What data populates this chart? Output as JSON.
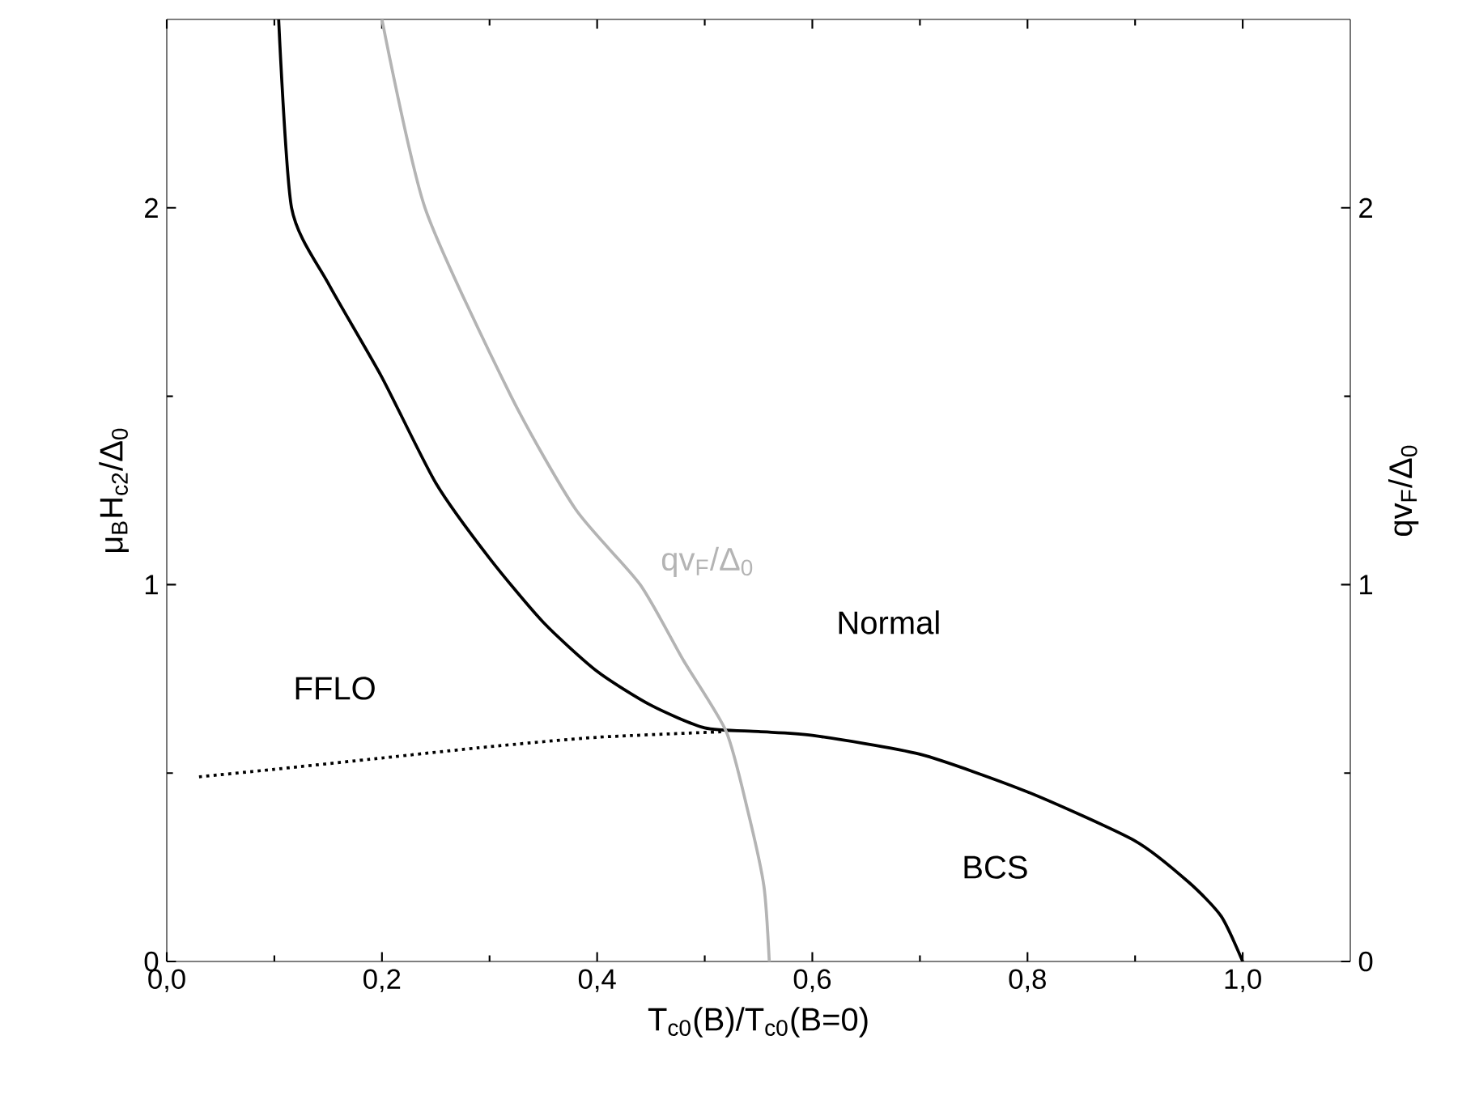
{
  "chart_data": {
    "type": "line",
    "xlabel": "T$_{c0}$(B)/T$_{c0}$(B=0)",
    "ylabel": "μ$_{B}$H$_{c2}$/Δ$_{0}$",
    "y2label": "qv$_{F}$/Δ$_{0}$",
    "xlim": [
      0,
      1.1
    ],
    "ylim": [
      0,
      2.5
    ],
    "y2lim": [
      0,
      2.5
    ],
    "xticks": [
      {
        "value": 0,
        "label": "0,0"
      },
      {
        "value": 0.2,
        "label": "0,2"
      },
      {
        "value": 0.4,
        "label": "0,4"
      },
      {
        "value": 0.6,
        "label": "0,6"
      },
      {
        "value": 0.8,
        "label": "0,8"
      },
      {
        "value": 1.0,
        "label": "1,0"
      }
    ],
    "yticks": [
      0,
      1,
      2
    ],
    "y2ticks": [
      0,
      1,
      2
    ],
    "grid": false,
    "legend": false,
    "marker": "none",
    "series": [
      {
        "color": "#000000",
        "line_style": "solid",
        "x": [
          0.104,
          0.116,
          0.15,
          0.2,
          0.25,
          0.3,
          0.35,
          0.4,
          0.45,
          0.5,
          0.55,
          0.6,
          0.7,
          0.8,
          0.9,
          0.95,
          0.98,
          1.0
        ],
        "values": [
          2.5,
          2.0,
          1.8,
          1.55,
          1.27,
          1.07,
          0.9,
          0.77,
          0.68,
          0.62,
          0.61,
          0.6,
          0.55,
          0.45,
          0.32,
          0.21,
          0.12,
          0
        ]
      },
      {
        "color": "#000000",
        "line_style": "dotted",
        "x": [
          0.03,
          0.1,
          0.2,
          0.3,
          0.4,
          0.52
        ],
        "values": [
          0.49,
          0.51,
          0.54,
          0.57,
          0.595,
          0.61
        ]
      },
      {
        "name": "qv$_{F}$/Δ$_{0}$",
        "color": "#b4b4b4",
        "line_style": "solid",
        "axis": "y2",
        "x": [
          0.2,
          0.24,
          0.32,
          0.38,
          0.44,
          0.48,
          0.52,
          0.54,
          0.555,
          0.56
        ],
        "values": [
          2.5,
          2.0,
          1.5,
          1.2,
          1.0,
          0.8,
          0.61,
          0.4,
          0.2,
          0
        ]
      }
    ],
    "annotations": [
      "FFLO",
      "Normal",
      "BCS"
    ]
  }
}
